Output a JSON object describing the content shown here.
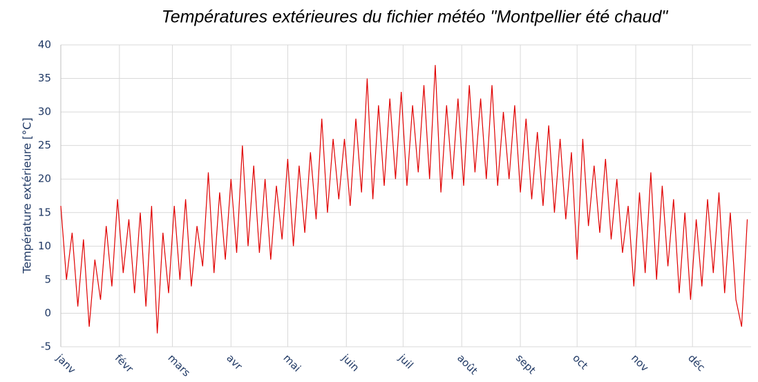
{
  "chart_data": {
    "type": "line",
    "title": "Températures extérieures du fichier météo \"Montpellier été chaud\"",
    "y_label": "Température extérieure [°C]",
    "x": [
      0,
      3,
      6,
      9,
      12,
      15,
      18,
      21,
      24,
      27,
      30,
      33,
      36,
      39,
      42,
      45,
      48,
      51,
      54,
      57,
      60,
      63,
      66,
      69,
      72,
      75,
      78,
      81,
      84,
      87,
      90,
      93,
      96,
      99,
      102,
      105,
      108,
      111,
      114,
      117,
      120,
      123,
      126,
      129,
      132,
      135,
      138,
      141,
      144,
      147,
      150,
      153,
      156,
      159,
      162,
      165,
      168,
      171,
      174,
      177,
      180,
      183,
      186,
      189,
      192,
      195,
      198,
      201,
      204,
      207,
      210,
      213,
      216,
      219,
      222,
      225,
      228,
      231,
      234,
      237,
      240,
      243,
      246,
      249,
      252,
      255,
      258,
      261,
      264,
      267,
      270,
      273,
      276,
      279,
      282,
      285,
      288,
      291,
      294,
      297,
      300,
      303,
      306,
      309,
      312,
      315,
      318,
      321,
      324,
      327,
      330,
      333,
      336,
      339,
      342,
      345,
      348,
      351,
      354,
      357,
      360,
      363
    ],
    "series": [
      {
        "name": "Température extérieure",
        "color": "#e00000",
        "values": [
          16,
          5,
          12,
          1,
          11,
          -2,
          8,
          2,
          13,
          4,
          17,
          6,
          14,
          3,
          15,
          1,
          16,
          -3,
          12,
          3,
          16,
          5,
          17,
          4,
          13,
          7,
          21,
          6,
          18,
          8,
          20,
          9,
          25,
          10,
          22,
          9,
          20,
          8,
          19,
          11,
          23,
          10,
          22,
          12,
          24,
          14,
          29,
          15,
          26,
          17,
          26,
          16,
          29,
          18,
          35,
          17,
          31,
          19,
          32,
          20,
          33,
          19,
          31,
          21,
          34,
          20,
          37,
          18,
          31,
          20,
          32,
          19,
          34,
          21,
          32,
          20,
          34,
          19,
          30,
          20,
          31,
          18,
          29,
          17,
          27,
          16,
          28,
          15,
          26,
          14,
          24,
          8,
          26,
          13,
          22,
          12,
          23,
          11,
          20,
          9,
          16,
          4,
          18,
          6,
          21,
          5,
          19,
          7,
          17,
          3,
          15,
          2,
          14,
          4,
          17,
          6,
          18,
          3,
          15,
          2,
          -2,
          14
        ]
      }
    ],
    "xlim": [
      0,
      365
    ],
    "xticks": [
      {
        "value": 0,
        "label": "janv"
      },
      {
        "value": 31,
        "label": "févr"
      },
      {
        "value": 59,
        "label": "mars"
      },
      {
        "value": 90,
        "label": "avr"
      },
      {
        "value": 120,
        "label": "mai"
      },
      {
        "value": 151,
        "label": "juin"
      },
      {
        "value": 181,
        "label": "juil"
      },
      {
        "value": 212,
        "label": "août"
      },
      {
        "value": 243,
        "label": "sept"
      },
      {
        "value": 273,
        "label": "oct"
      },
      {
        "value": 304,
        "label": "nov"
      },
      {
        "value": 334,
        "label": "déc"
      }
    ],
    "ylim": [
      -5,
      40
    ],
    "yticks": [
      -5,
      0,
      5,
      10,
      15,
      20,
      25,
      30,
      35,
      40
    ],
    "grid": true
  }
}
